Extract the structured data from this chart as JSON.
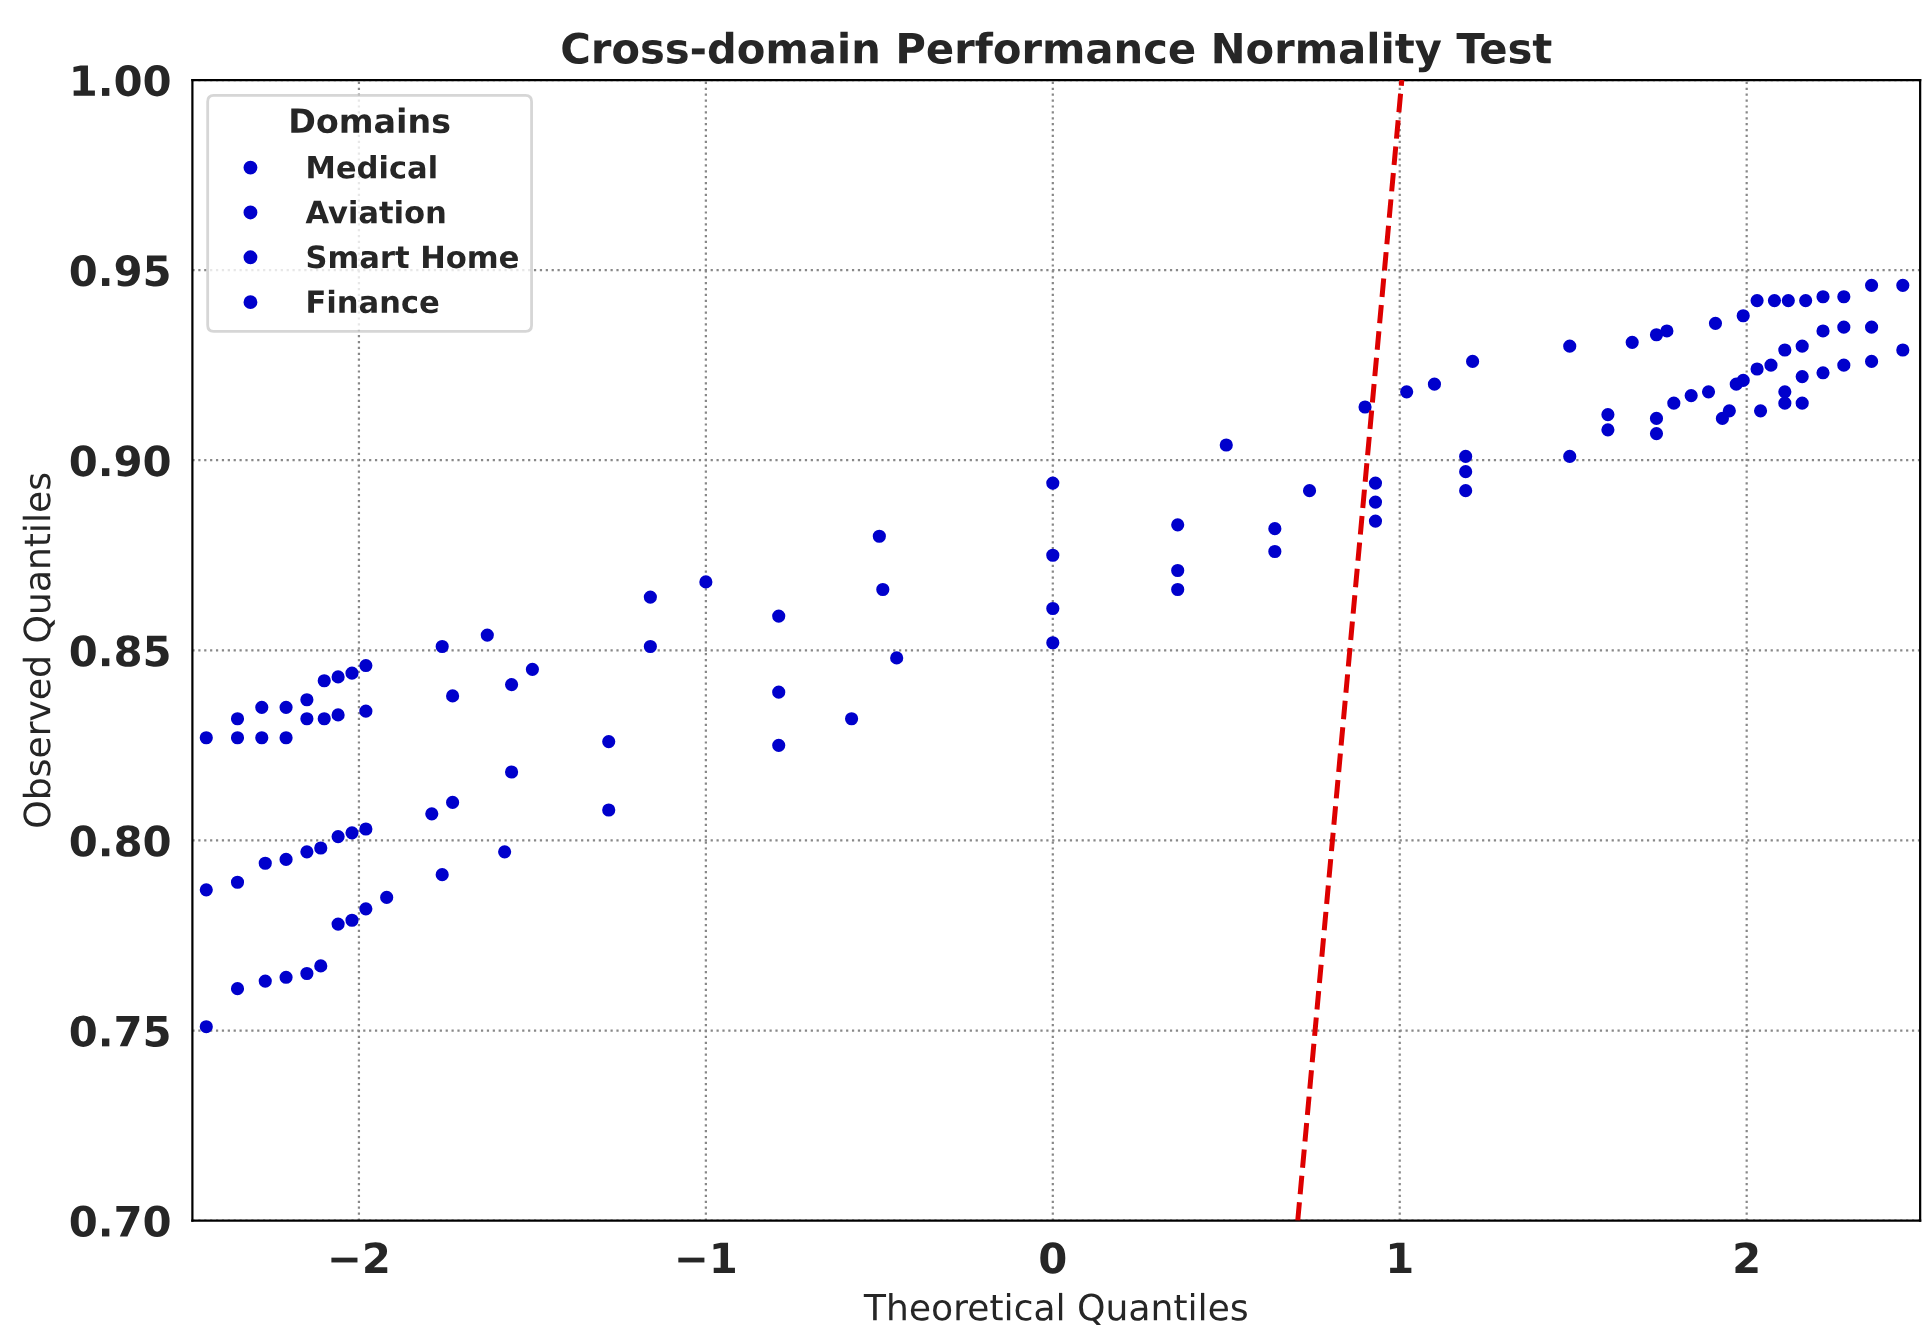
{
  "chart_data": {
    "type": "scatter",
    "title": "Cross-domain Performance Normality Test",
    "xlabel": "Theoretical Quantiles",
    "ylabel": "Observed Quantiles",
    "legend_title": "Domains",
    "legend": "top left",
    "grid": true,
    "marker": "circle",
    "xlim": [
      -2.48,
      2.5
    ],
    "ylim": [
      0.7,
      1.0
    ],
    "xticks": [
      {
        "value": -2,
        "label": "−2"
      },
      {
        "value": -1,
        "label": "−1"
      },
      0,
      1,
      2
    ],
    "yticks": [
      {
        "value": 0.7,
        "label": "0.70"
      },
      {
        "value": 0.75,
        "label": "0.75"
      },
      {
        "value": 0.8,
        "label": "0.80"
      },
      {
        "value": 0.85,
        "label": "0.85"
      },
      {
        "value": 0.9,
        "label": "0.90"
      },
      {
        "value": 0.95,
        "label": "0.95"
      },
      {
        "value": 1.0,
        "label": "1.00"
      }
    ],
    "series": [
      {
        "name": "Medical",
        "color": "#0000cc",
        "x": [
          -2.44,
          -2.35,
          -2.28,
          -2.21,
          -2.15,
          -2.1,
          -2.06,
          -2.02,
          -1.98,
          -1.76,
          -1.63,
          -1.16,
          -1.0,
          -0.5,
          0,
          0.5,
          0.9,
          1.02,
          1.1,
          1.21,
          1.49,
          1.67,
          1.74,
          1.77,
          1.91,
          1.99,
          2.03,
          2.08,
          2.12,
          2.17,
          2.22,
          2.28,
          2.36,
          2.45
        ],
        "values": [
          0.827,
          0.832,
          0.835,
          0.835,
          0.837,
          0.842,
          0.843,
          0.844,
          0.846,
          0.851,
          0.854,
          0.864,
          0.868,
          0.88,
          0.894,
          0.904,
          0.914,
          0.918,
          0.92,
          0.926,
          0.93,
          0.931,
          0.933,
          0.934,
          0.936,
          0.938,
          0.942,
          0.942,
          0.942,
          0.942,
          0.943,
          0.943,
          0.946,
          0.946
        ]
      },
      {
        "name": "Aviation",
        "color": "#0000cc",
        "x": [
          -2.35,
          -2.28,
          -2.21,
          -2.15,
          -2.1,
          -2.06,
          -1.98,
          -1.73,
          -1.56,
          -1.5,
          -1.16,
          -0.79,
          -0.49,
          0,
          0.36,
          0.74,
          0.93,
          1.19,
          1.6,
          1.79,
          1.84,
          1.89,
          1.97,
          1.99,
          2.03,
          2.07,
          2.11,
          2.16,
          2.22,
          2.28,
          2.36
        ],
        "values": [
          0.827,
          0.827,
          0.827,
          0.832,
          0.832,
          0.833,
          0.834,
          0.838,
          0.841,
          0.845,
          0.851,
          0.859,
          0.866,
          0.875,
          0.883,
          0.892,
          0.894,
          0.901,
          0.912,
          0.915,
          0.917,
          0.918,
          0.92,
          0.921,
          0.924,
          0.925,
          0.929,
          0.93,
          0.934,
          0.935,
          0.935
        ]
      },
      {
        "name": "Smart Home",
        "color": "#0000cc",
        "x": [
          -2.44,
          -2.35,
          -2.27,
          -2.21,
          -2.15,
          -2.11,
          -2.06,
          -2.02,
          -1.98,
          -1.79,
          -1.73,
          -1.56,
          -1.28,
          -0.79,
          -0.45,
          0,
          0.36,
          0.64,
          0.93,
          1.19,
          1.6,
          1.74,
          1.95,
          2.11,
          2.16,
          2.22,
          2.28,
          2.36,
          2.45
        ],
        "values": [
          0.787,
          0.789,
          0.794,
          0.795,
          0.797,
          0.798,
          0.801,
          0.802,
          0.803,
          0.807,
          0.81,
          0.818,
          0.826,
          0.839,
          0.848,
          0.861,
          0.871,
          0.882,
          0.889,
          0.897,
          0.908,
          0.911,
          0.913,
          0.918,
          0.922,
          0.923,
          0.925,
          0.926,
          0.929
        ]
      },
      {
        "name": "Finance",
        "color": "#0000cc",
        "x": [
          -2.44,
          -2.35,
          -2.27,
          -2.21,
          -2.15,
          -2.11,
          -2.06,
          -2.02,
          -1.98,
          -1.92,
          -1.76,
          -1.58,
          -1.28,
          -0.79,
          -0.58,
          0,
          0.36,
          0.64,
          0.93,
          1.19,
          1.49,
          1.74,
          1.93,
          2.04,
          2.11,
          2.16
        ],
        "values": [
          0.751,
          0.761,
          0.763,
          0.764,
          0.765,
          0.767,
          0.778,
          0.779,
          0.782,
          0.785,
          0.791,
          0.797,
          0.808,
          0.825,
          0.832,
          0.852,
          0.866,
          0.876,
          0.884,
          0.892,
          0.901,
          0.907,
          0.911,
          0.913,
          0.915,
          0.915
        ]
      },
      {
        "type": "line",
        "color": "#dd0000",
        "line_style": "dashed",
        "marker": "none",
        "x": [
          0.706,
          1.006
        ],
        "values": [
          0.7,
          1.0
        ]
      }
    ]
  }
}
